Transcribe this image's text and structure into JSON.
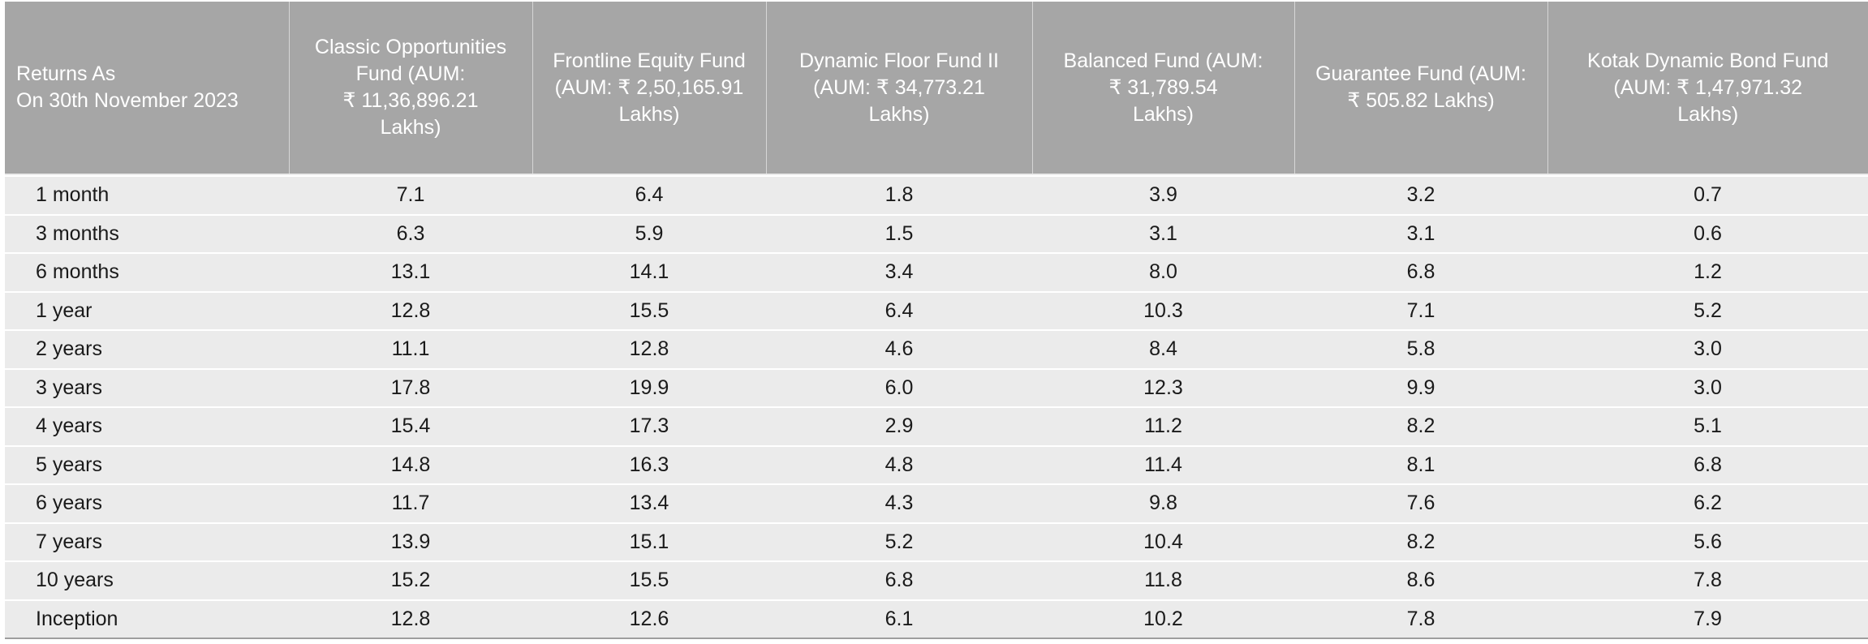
{
  "table": {
    "headers": [
      [
        "Returns As",
        "On 30th November 2023"
      ],
      [
        "Classic Opportunities",
        "Fund (AUM:",
        "₹ 11,36,896.21",
        "Lakhs)"
      ],
      [
        "Frontline Equity Fund",
        "(AUM:  ₹ 2,50,165.91",
        "Lakhs)"
      ],
      [
        "Dynamic Floor Fund II",
        "(AUM: ₹ 34,773.21",
        "Lakhs)"
      ],
      [
        "Balanced Fund (AUM:",
        "₹ 31,789.54",
        "Lakhs)"
      ],
      [
        "Guarantee Fund (AUM:",
        "₹ 505.82 Lakhs)"
      ],
      [
        "Kotak Dynamic Bond Fund",
        "(AUM:  ₹ 1,47,971.32",
        "Lakhs)"
      ]
    ],
    "rows": [
      [
        "1 month",
        "7.1",
        "6.4",
        "1.8",
        "3.9",
        "3.2",
        "0.7"
      ],
      [
        "3 months",
        "6.3",
        "5.9",
        "1.5",
        "3.1",
        "3.1",
        "0.6"
      ],
      [
        "6 months",
        "13.1",
        "14.1",
        "3.4",
        "8.0",
        "6.8",
        "1.2"
      ],
      [
        "1 year",
        "12.8",
        "15.5",
        "6.4",
        "10.3",
        "7.1",
        "5.2"
      ],
      [
        "2 years",
        "11.1",
        "12.8",
        "4.6",
        "8.4",
        "5.8",
        "3.0"
      ],
      [
        "3 years",
        "17.8",
        "19.9",
        "6.0",
        "12.3",
        "9.9",
        "3.0"
      ],
      [
        "4 years",
        "15.4",
        "17.3",
        "2.9",
        "11.2",
        "8.2",
        "5.1"
      ],
      [
        "5 years",
        "14.8",
        "16.3",
        "4.8",
        "11.4",
        "8.1",
        "6.8"
      ],
      [
        "6 years",
        "11.7",
        "13.4",
        "4.3",
        "9.8",
        "7.6",
        "6.2"
      ],
      [
        "7 years",
        "13.9",
        "15.1",
        "5.2",
        "10.4",
        "8.2",
        "5.6"
      ],
      [
        "10 years",
        "15.2",
        "15.5",
        "6.8",
        "11.8",
        "8.6",
        "7.8"
      ],
      [
        "Inception",
        "12.8",
        "12.6",
        "6.1",
        "10.2",
        "7.8",
        "7.9"
      ]
    ]
  }
}
